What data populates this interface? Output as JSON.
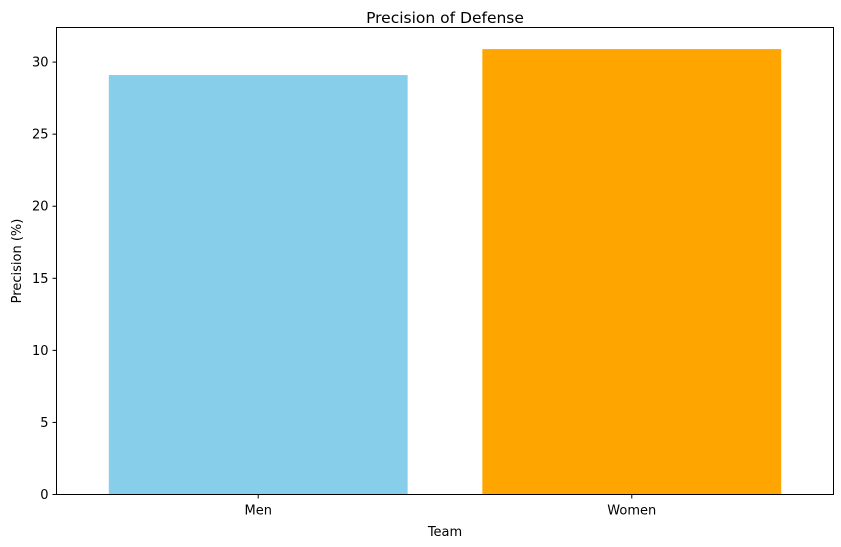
{
  "chart_data": {
    "type": "bar",
    "title": "Precision of Defense",
    "xlabel": "Team",
    "ylabel": "Precision (%)",
    "categories": [
      "Men",
      "Women"
    ],
    "values": [
      29.1,
      30.9
    ],
    "colors": [
      "#87ceeb",
      "#ffa500"
    ],
    "ylim": [
      0,
      32.4
    ],
    "yticks": [
      0,
      5,
      10,
      15,
      20,
      25,
      30
    ],
    "grid": false,
    "legend": "none"
  }
}
